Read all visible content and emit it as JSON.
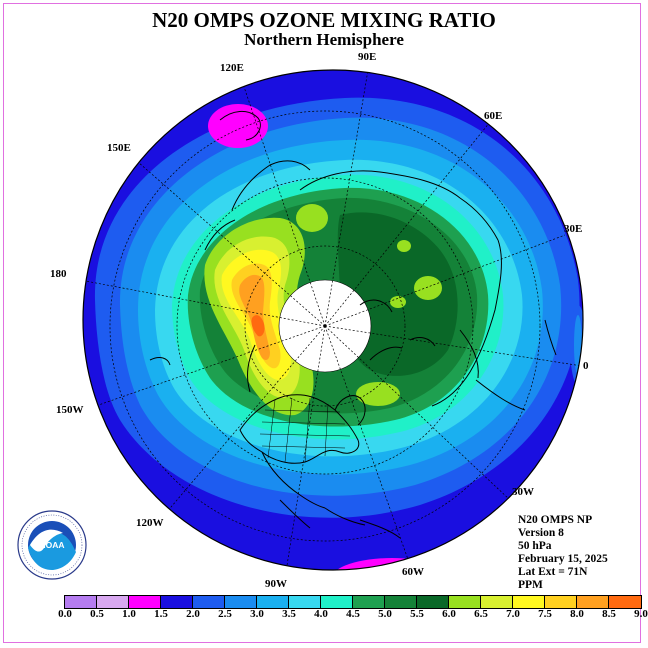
{
  "header": {
    "title": "N20 OMPS OZONE MIXING RATIO",
    "subtitle": "Northern Hemisphere"
  },
  "longitude_labels": {
    "lon_120e": "120E",
    "lon_90e": "90E",
    "lon_60e": "60E",
    "lon_150e": "150E",
    "lon_30e": "30E",
    "lon_180": "180",
    "lon_0": "0",
    "lon_150w": "150W",
    "lon_30w": "30W",
    "lon_120w": "120W",
    "lon_60w": "60W",
    "lon_90w": "90W"
  },
  "info": {
    "product": "N20 OMPS NP",
    "version": "Version 8",
    "pressure": "50 hPa",
    "date": "February 15, 2025",
    "lat_ext": "Lat Ext = 71N",
    "units": "PPM"
  },
  "logo": {
    "text": "NOAA",
    "ring_text": "NATIONAL OCEANIC AND ATMOSPHERIC ADMINISTRATION · U.S. DEPARTMENT OF COMMERCE"
  },
  "colorbar": {
    "colors": [
      "#b57cf0",
      "#d8a8f0",
      "#ff00ff",
      "#1a0fe0",
      "#1e5cf0",
      "#1a8cf0",
      "#1ab0f0",
      "#38d8f0",
      "#20f0c8",
      "#1ea050",
      "#148238",
      "#0a6828",
      "#98e020",
      "#d8f030",
      "#fff820",
      "#ffd020",
      "#ffa020",
      "#ff6a10",
      "#ff1818",
      "#c41818",
      "#886040"
    ],
    "ticks": [
      "0.0",
      "0.5",
      "1.0",
      "1.5",
      "2.0",
      "2.5",
      "3.0",
      "3.5",
      "4.0",
      "4.5",
      "5.0",
      "5.5",
      "6.0",
      "6.5",
      "7.0",
      "7.5",
      "8.0",
      "8.5",
      "9.0"
    ]
  }
}
